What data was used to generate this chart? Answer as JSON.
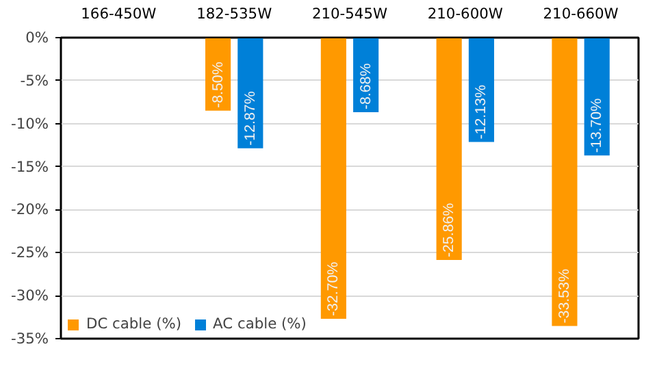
{
  "chart_data": {
    "type": "bar",
    "categories": [
      "166-450W",
      "182-535W",
      "210-545W",
      "210-600W",
      "210-660W"
    ],
    "series": [
      {
        "name": "DC cable (%)",
        "color": "#ff9900",
        "values": [
          null,
          -8.5,
          -32.7,
          -25.86,
          -33.53
        ],
        "value_labels": [
          null,
          "-8.50%",
          "-32.70%",
          "-25.86%",
          "-33.53%"
        ]
      },
      {
        "name": "AC cable (%)",
        "color": "#0080d8",
        "values": [
          null,
          -12.87,
          -8.68,
          -12.13,
          -13.7
        ],
        "value_labels": [
          null,
          "-12.87%",
          "-8.68%",
          "-12.13%",
          "-13.70%"
        ]
      }
    ],
    "ylim": [
      -35,
      0
    ],
    "yticks": [
      {
        "value": 0,
        "label": "0%"
      },
      {
        "value": -5,
        "label": "-5%"
      },
      {
        "value": -10,
        "label": "-10%"
      },
      {
        "value": -15,
        "label": "-15%"
      },
      {
        "value": -20,
        "label": "-20%"
      },
      {
        "value": -25,
        "label": "-25%"
      },
      {
        "value": -30,
        "label": "-30%"
      },
      {
        "value": -35,
        "label": "-35%"
      }
    ],
    "grid": "y",
    "legend": "bottom left"
  }
}
